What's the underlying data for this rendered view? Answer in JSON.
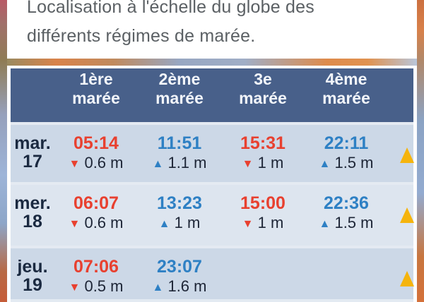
{
  "page": {
    "title_line1": "Localisation à l'échelle du globe des",
    "title_line2": "différents régimes de marée."
  },
  "tide_table": {
    "columns": [
      {
        "top": "1ère",
        "bottom": "marée"
      },
      {
        "top": "2ème",
        "bottom": "marée"
      },
      {
        "top": "3e",
        "bottom": "marée"
      },
      {
        "top": "4ème",
        "bottom": "marée"
      }
    ],
    "rows": [
      {
        "day": "mar.",
        "date": "17",
        "tides": [
          {
            "time": "05:14",
            "direction": "low",
            "height": "0.6 m"
          },
          {
            "time": "11:51",
            "direction": "high",
            "height": "1.1 m"
          },
          {
            "time": "15:31",
            "direction": "low",
            "height": "1 m"
          },
          {
            "time": "22:11",
            "direction": "high",
            "height": "1.5 m"
          }
        ],
        "marker": "yellow-triangle"
      },
      {
        "day": "mer.",
        "date": "18",
        "tides": [
          {
            "time": "06:07",
            "direction": "low",
            "height": "0.6 m"
          },
          {
            "time": "13:23",
            "direction": "high",
            "height": "1 m"
          },
          {
            "time": "15:00",
            "direction": "low",
            "height": "1 m"
          },
          {
            "time": "22:36",
            "direction": "high",
            "height": "1.5 m"
          }
        ],
        "marker": "yellow-triangle"
      },
      {
        "day": "jeu.",
        "date": "19",
        "tides": [
          {
            "time": "07:06",
            "direction": "low",
            "height": "0.5 m"
          },
          {
            "time": "23:07",
            "direction": "high",
            "height": "1.6 m"
          },
          null,
          null
        ],
        "marker": "yellow-triangle"
      }
    ],
    "glyphs": {
      "low": "▼",
      "high": "▲"
    },
    "colors": {
      "low_tide": "#e8402f",
      "high_tide": "#2e80c4",
      "header_bg": "#48608a",
      "row_bg": "#ccd8e7",
      "row_bg_alt": "#dde5ef",
      "day_text": "#1a2940",
      "marker_yellow": "#f5b40d"
    }
  }
}
